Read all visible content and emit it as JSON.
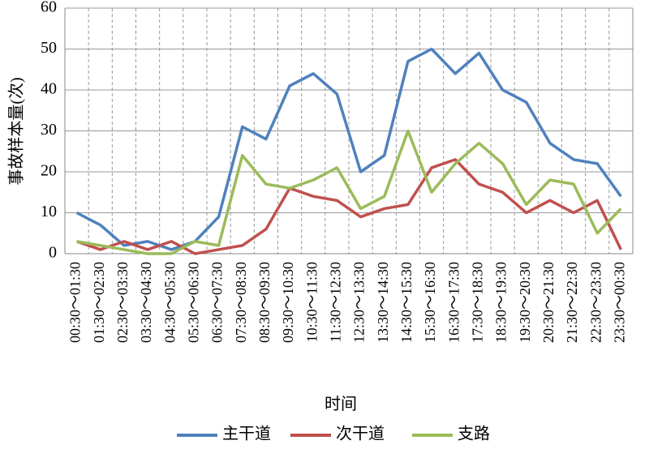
{
  "chart_data": {
    "type": "line",
    "x_label": "时间",
    "y_label": "事故样本量(次)",
    "categories": [
      "00:30～01:30",
      "01:30～02:30",
      "02:30～03:30",
      "03:30～04:30",
      "04:30～05:30",
      "05:30～06:30",
      "06:30～07:30",
      "07:30～08:30",
      "08:30～09:30",
      "09:30～10:30",
      "10:30～11:30",
      "11:30～12:30",
      "12:30～13:30",
      "13:30～14:30",
      "14:30～15:30",
      "15:30～16:30",
      "16:30～17:30",
      "17:30～18:30",
      "18:30～19:30",
      "19:30～20:30",
      "20:30～21:30",
      "21:30～22:30",
      "22:30～23:30",
      "23:30～00:30"
    ],
    "series": [
      {
        "name": "主干道",
        "color": "#4f81bd",
        "values": [
          10,
          7,
          2,
          3,
          1,
          3,
          9,
          31,
          28,
          41,
          44,
          39,
          20,
          24,
          47,
          50,
          44,
          49,
          40,
          37,
          27,
          23,
          22,
          14
        ]
      },
      {
        "name": "次干道",
        "color": "#c0504d",
        "values": [
          3,
          1,
          3,
          1,
          3,
          0,
          1,
          2,
          6,
          16,
          14,
          13,
          9,
          11,
          12,
          21,
          23,
          17,
          15,
          10,
          13,
          10,
          13,
          1
        ]
      },
      {
        "name": "支路",
        "color": "#9bbb59",
        "values": [
          3,
          2,
          1,
          0,
          0,
          3,
          2,
          24,
          17,
          16,
          18,
          21,
          11,
          14,
          30,
          15,
          22,
          27,
          22,
          12,
          18,
          17,
          5,
          11
        ]
      }
    ],
    "ylim": [
      0,
      60
    ],
    "yticks": [
      0,
      10,
      20,
      30,
      40,
      50,
      60
    ],
    "grid": true,
    "legend": "bottom"
  }
}
